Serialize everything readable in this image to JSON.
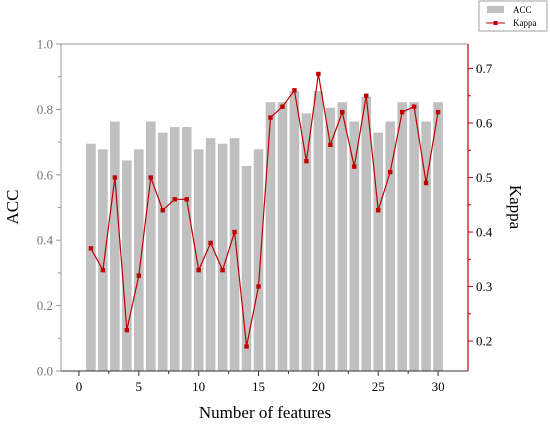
{
  "chart_data": {
    "type": "bar+line",
    "x": [
      1,
      2,
      3,
      4,
      5,
      6,
      7,
      8,
      9,
      10,
      11,
      12,
      13,
      14,
      15,
      16,
      17,
      18,
      19,
      20,
      21,
      22,
      23,
      24,
      25,
      26,
      27,
      28,
      29,
      30
    ],
    "xlabel": "Number of features",
    "xlim": [
      -1.5,
      32.5
    ],
    "xticks": [
      0,
      5,
      10,
      15,
      20,
      25,
      30
    ],
    "legend_position": "top-right",
    "series": [
      {
        "name": "ACC",
        "type": "bar",
        "axis": "left",
        "color": "#c0c0c0",
        "values": [
          0.695,
          0.678,
          0.763,
          0.644,
          0.678,
          0.763,
          0.729,
          0.746,
          0.746,
          0.678,
          0.712,
          0.695,
          0.712,
          0.627,
          0.678,
          0.822,
          0.822,
          0.856,
          0.788,
          0.856,
          0.805,
          0.822,
          0.763,
          0.839,
          0.729,
          0.763,
          0.822,
          0.822,
          0.763,
          0.822
        ]
      },
      {
        "name": "Kappa",
        "type": "line",
        "axis": "right",
        "color": "#c00000",
        "values": [
          0.37,
          0.33,
          0.5,
          0.22,
          0.32,
          0.5,
          0.44,
          0.46,
          0.46,
          0.33,
          0.38,
          0.33,
          0.4,
          0.19,
          0.3,
          0.61,
          0.63,
          0.66,
          0.53,
          0.69,
          0.56,
          0.62,
          0.52,
          0.65,
          0.44,
          0.51,
          0.62,
          0.63,
          0.49,
          0.62
        ]
      }
    ],
    "left_axis": {
      "label": "ACC",
      "ylim": [
        0,
        1.0
      ],
      "ticks": [
        0.0,
        0.2,
        0.4,
        0.6,
        0.8,
        1.0
      ],
      "tick_labels": [
        "0.0",
        "0.2",
        "0.4",
        "0.6",
        "0.8",
        "1.0"
      ],
      "color": "#999999"
    },
    "right_axis": {
      "label": "Kappa",
      "ylim": [
        0.145,
        0.745
      ],
      "ticks": [
        0.2,
        0.3,
        0.4,
        0.5,
        0.6,
        0.7
      ],
      "tick_labels": [
        "0.2",
        "0.3",
        "0.4",
        "0.5",
        "0.6",
        "0.7"
      ],
      "color": "#c00000"
    }
  }
}
